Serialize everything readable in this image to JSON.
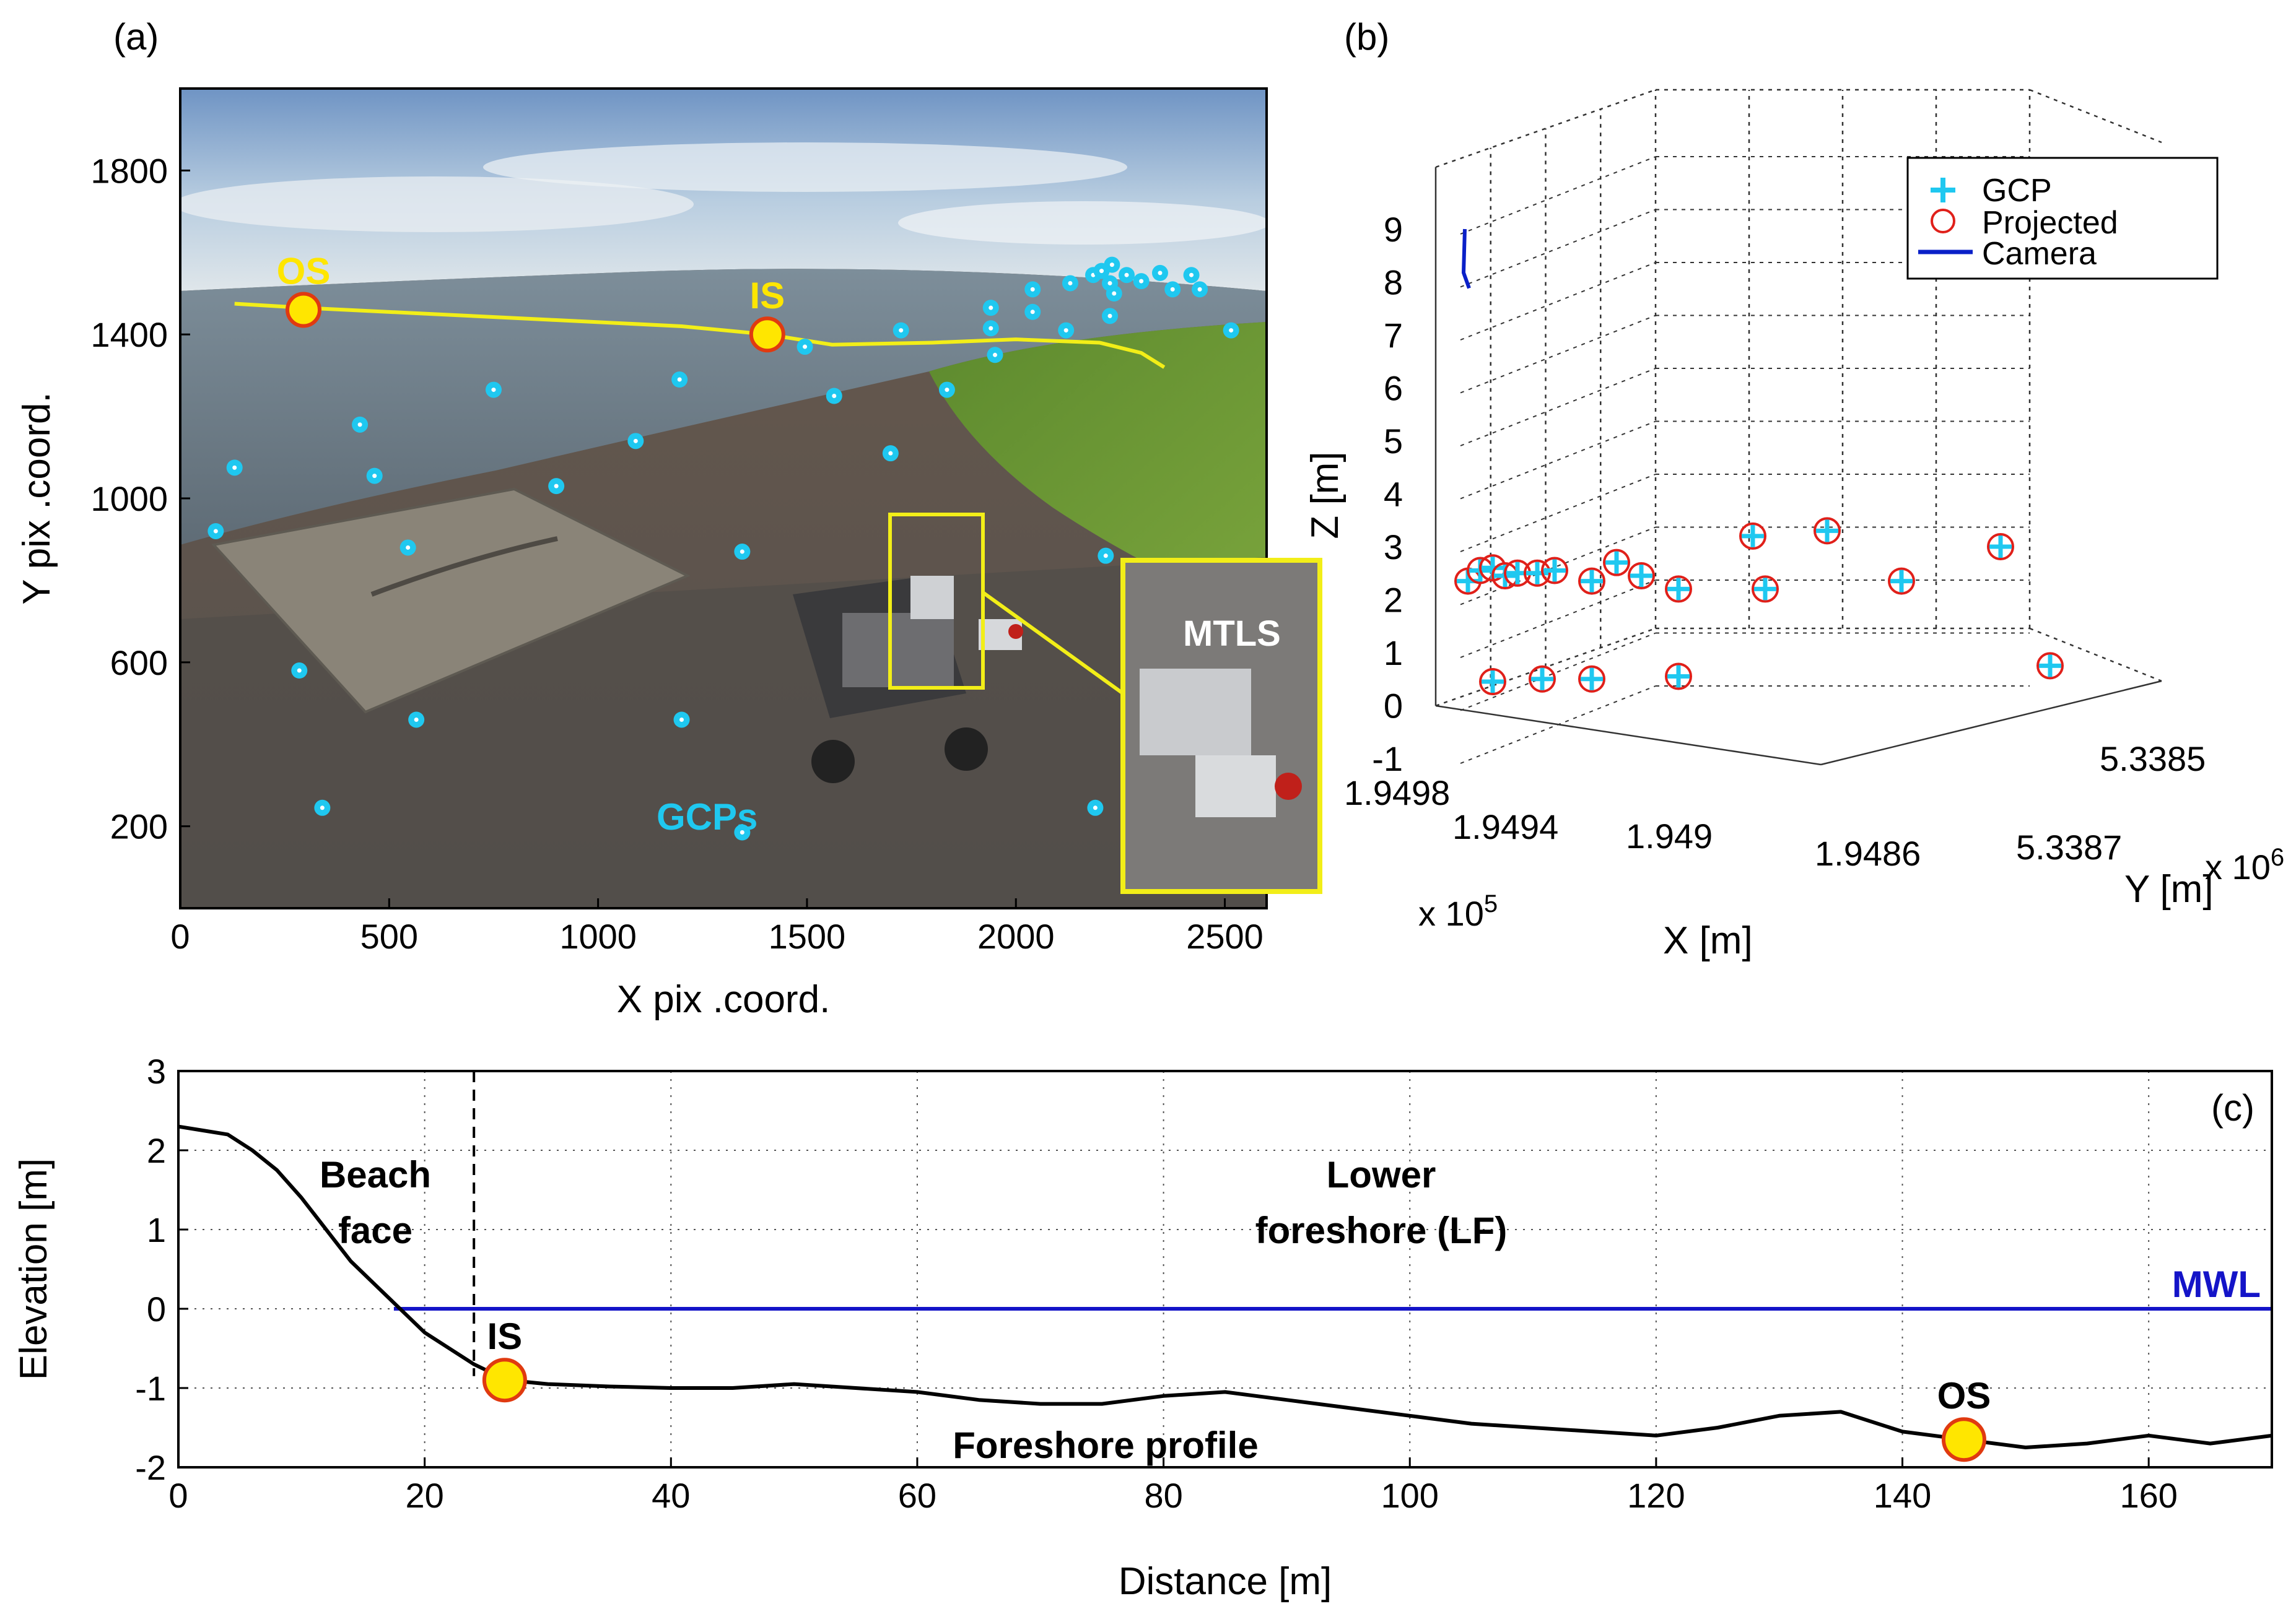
{
  "colors": {
    "gcp": "#1fc8f0",
    "projected": "#e0201a",
    "camera": "#0a20c8",
    "profile": "#000000",
    "mwl": "#1414c8",
    "sensor_fill": "#ffe600",
    "sensor_edge": "#e03a10",
    "highlight": "#f2ee18"
  },
  "chart_data": [
    {
      "panel": "(a)",
      "type": "scatter",
      "background": "oblique beach photograph with MTLS vehicle",
      "xlabel": "X pix .coord.",
      "ylabel": "Y pix .coord.",
      "xlim": [
        0,
        2600
      ],
      "ylim": [
        0,
        2000
      ],
      "xticks": [
        0,
        500,
        1000,
        1500,
        2000,
        2500
      ],
      "yticks": [
        200,
        600,
        1000,
        1400,
        1800
      ],
      "gcps": [
        [
          340,
          245
        ],
        [
          565,
          460
        ],
        [
          1345,
          185
        ],
        [
          1200,
          460
        ],
        [
          2190,
          245
        ],
        [
          285,
          580
        ],
        [
          85,
          920
        ],
        [
          545,
          880
        ],
        [
          1345,
          870
        ],
        [
          2215,
          860
        ],
        [
          130,
          1075
        ],
        [
          465,
          1055
        ],
        [
          900,
          1030
        ],
        [
          430,
          1180
        ],
        [
          1090,
          1140
        ],
        [
          1700,
          1110
        ],
        [
          750,
          1265
        ],
        [
          1195,
          1290
        ],
        [
          1565,
          1250
        ],
        [
          1835,
          1265
        ],
        [
          1495,
          1370
        ],
        [
          1725,
          1410
        ],
        [
          1950,
          1350
        ],
        [
          1940,
          1415
        ],
        [
          1940,
          1465
        ],
        [
          2120,
          1410
        ],
        [
          2040,
          1455
        ],
        [
          2040,
          1510
        ],
        [
          2225,
          1445
        ],
        [
          2235,
          1500
        ],
        [
          2225,
          1525
        ],
        [
          2375,
          1510
        ],
        [
          2440,
          1510
        ],
        [
          2515,
          1410
        ],
        [
          2130,
          1525
        ],
        [
          2185,
          1545
        ],
        [
          2205,
          1555
        ],
        [
          2265,
          1545
        ],
        [
          2300,
          1530
        ],
        [
          2345,
          1550
        ],
        [
          2420,
          1545
        ],
        [
          2230,
          1570
        ]
      ],
      "sensors": [
        {
          "label": "OS",
          "x": 295,
          "y": 1460
        },
        {
          "label": "IS",
          "x": 1405,
          "y": 1400
        }
      ],
      "shoreline": [
        [
          130,
          1475
        ],
        [
          295,
          1465
        ],
        [
          600,
          1450
        ],
        [
          900,
          1435
        ],
        [
          1200,
          1420
        ],
        [
          1405,
          1400
        ],
        [
          1560,
          1375
        ],
        [
          1800,
          1380
        ],
        [
          2000,
          1388
        ],
        [
          2200,
          1380
        ],
        [
          2300,
          1355
        ],
        [
          2355,
          1320
        ]
      ],
      "annotations": [
        "OS",
        "IS",
        "GCPs",
        "MTLS"
      ]
    },
    {
      "panel": "(b)",
      "type": "scatter3d",
      "xlabel": "X [m]",
      "ylabel": "Y [m]",
      "zlabel": "Z [m]",
      "x_tick_labels": [
        "1.9498",
        "1.9494",
        "1.949",
        "1.9486"
      ],
      "x_multiplier": "x 10",
      "x_exponent": "5",
      "y_tick_labels": [
        "5.3385",
        "5.3387"
      ],
      "y_multiplier": "x 10",
      "y_exponent": "6",
      "zlim": [
        -1,
        9
      ],
      "zticks": [
        -1,
        0,
        1,
        2,
        3,
        4,
        5,
        6,
        7,
        8,
        9
      ],
      "legend": [
        "GCP",
        "Projected",
        "Camera"
      ],
      "legend_position": "top-right",
      "points_note": "GCP (+) and projected (o) positions read in screen plane of the 3-D view",
      "points": [
        [
          0.0,
          2.35
        ],
        [
          0.05,
          2.55
        ],
        [
          0.1,
          2.6
        ],
        [
          0.15,
          2.45
        ],
        [
          0.2,
          2.5
        ],
        [
          0.28,
          2.5
        ],
        [
          0.35,
          2.55
        ],
        [
          0.5,
          2.35
        ],
        [
          0.6,
          2.7
        ],
        [
          0.7,
          2.45
        ],
        [
          0.85,
          2.2
        ],
        [
          0.1,
          0.45
        ],
        [
          0.3,
          0.5
        ],
        [
          0.5,
          0.5
        ],
        [
          1.15,
          3.2
        ],
        [
          1.45,
          3.3
        ],
        [
          1.2,
          2.2
        ],
        [
          1.75,
          2.35
        ],
        [
          2.15,
          3.0
        ],
        [
          0.85,
          0.55
        ],
        [
          2.35,
          0.75
        ]
      ],
      "camera_z": [
        8.0,
        9.0
      ]
    },
    {
      "panel": "(c)",
      "type": "line",
      "xlabel": "Distance [m]",
      "ylabel": "Elevation [m]",
      "xlim": [
        0,
        170
      ],
      "ylim": [
        -2,
        3
      ],
      "xticks": [
        0,
        20,
        40,
        60,
        80,
        100,
        120,
        140,
        160
      ],
      "yticks": [
        -2,
        -1,
        0,
        1,
        2,
        3
      ],
      "grid": true,
      "series": [
        {
          "name": "Foreshore profile",
          "x": [
            0,
            2,
            4,
            6,
            8,
            10,
            12,
            14,
            16,
            18,
            20,
            22,
            24,
            26,
            28,
            30,
            35,
            40,
            45,
            50,
            55,
            60,
            65,
            70,
            75,
            80,
            85,
            90,
            95,
            100,
            105,
            110,
            115,
            120,
            125,
            130,
            135,
            140,
            145,
            150,
            155,
            160,
            165,
            170
          ],
          "y": [
            2.3,
            2.25,
            2.2,
            2.0,
            1.75,
            1.4,
            1.0,
            0.6,
            0.3,
            0.0,
            -0.3,
            -0.5,
            -0.7,
            -0.85,
            -0.92,
            -0.95,
            -0.98,
            -1.0,
            -1.0,
            -0.95,
            -1.0,
            -1.05,
            -1.15,
            -1.2,
            -1.2,
            -1.1,
            -1.05,
            -1.15,
            -1.25,
            -1.35,
            -1.45,
            -1.5,
            -1.55,
            -1.6,
            -1.5,
            -1.35,
            -1.3,
            -1.55,
            -1.65,
            -1.75,
            -1.7,
            -1.6,
            -1.7,
            -1.6
          ]
        },
        {
          "name": "MWL",
          "x": [
            17.5,
            170
          ],
          "y": [
            0,
            0
          ]
        }
      ],
      "divider_x": 24,
      "sensors": [
        {
          "label": "IS",
          "x": 26.5,
          "y": -0.9
        },
        {
          "label": "OS",
          "x": 145,
          "y": -1.65
        }
      ],
      "region_labels": [
        "Beach",
        "face",
        "Lower",
        "foreshore (LF)"
      ],
      "profile_label": "Foreshore profile",
      "mwl_label": "MWL",
      "panel_label": "(c)"
    }
  ]
}
